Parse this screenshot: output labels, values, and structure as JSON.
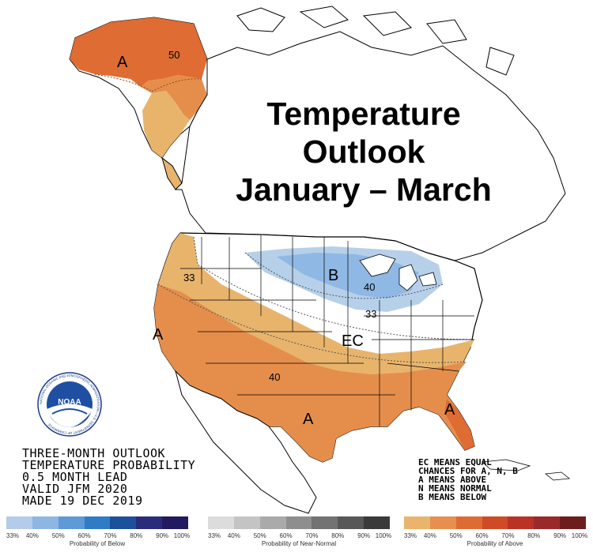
{
  "title_lines": [
    "Temperature",
    "Outlook",
    "January – March"
  ],
  "info_lines": [
    "THREE-MONTH OUTLOOK",
    "TEMPERATURE PROBABILITY",
    "0.5 MONTH LEAD",
    "VALID JFM 2020",
    "MADE 19 DEC 2019"
  ],
  "notes_lines": [
    "EC MEANS EQUAL",
    "CHANCES FOR A, N, B",
    "A MEANS ABOVE",
    "N MEANS NORMAL",
    "B MEANS BELOW"
  ],
  "map_labels": {
    "alaska_a": "A",
    "alaska_50": "50",
    "west_33": "33",
    "west_a": "A",
    "southwest_40": "40",
    "south_a": "A",
    "florida_a": "A",
    "b": "B",
    "b_40": "40",
    "b_33": "33",
    "ec": "EC"
  },
  "logo": {
    "name": "NOAA",
    "ring_text": "NATIONAL OCEANIC AND ATMOSPHERIC ADMINISTRATION • U.S. DEPARTMENT OF COMMERCE"
  },
  "colors": {
    "above_33": "#e8b46c",
    "above_40": "#e58e4c",
    "above_50": "#df6c33",
    "above_60": "#c84a20",
    "below_33": "#b6d0ea",
    "below_40": "#8fb8e4",
    "ocean": "#ffffff",
    "land_ec": "#ffffff"
  },
  "legends": {
    "below": {
      "title": "Probability of Below",
      "ticks": [
        "33%",
        "40%",
        "50%",
        "60%",
        "70%",
        "80%",
        "90%",
        "100%"
      ],
      "colors": [
        "#b4cbe9",
        "#8db6e3",
        "#5d9ad6",
        "#2f7bc6",
        "#1c4f9c",
        "#2b2b7b",
        "#211a5e"
      ]
    },
    "normal": {
      "title": "Probability of Near-Normal",
      "ticks": [
        "33%",
        "40%",
        "50%",
        "60%",
        "70%",
        "80%",
        "90%",
        "100%"
      ],
      "colors": [
        "#dcdcdc",
        "#c4c4c4",
        "#aaaaaa",
        "#8e8e8e",
        "#737373",
        "#575757",
        "#3a3a3a"
      ]
    },
    "above": {
      "title": "Probability of Above",
      "ticks": [
        "33%",
        "40%",
        "50%",
        "60%",
        "70%",
        "80%",
        "90%",
        "100%"
      ],
      "colors": [
        "#e9b56c",
        "#e68f4e",
        "#df6b34",
        "#cf4a27",
        "#b93224",
        "#9a2a2a",
        "#6e1d1d"
      ]
    }
  }
}
